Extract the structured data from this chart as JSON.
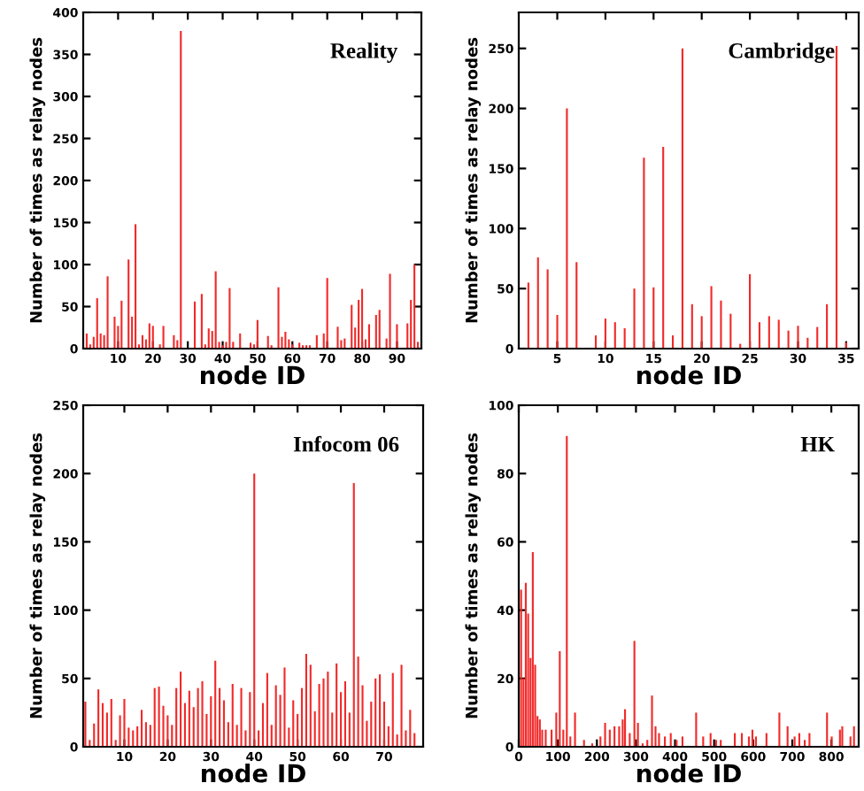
{
  "chart_data": [
    {
      "type": "bar",
      "title": "Reality",
      "xlabel": "node ID",
      "ylabel": "Number of times as relay nodes",
      "xlim": [
        0,
        97
      ],
      "xticks": [
        10,
        20,
        30,
        40,
        50,
        60,
        70,
        80,
        90
      ],
      "ylim": [
        0,
        400
      ],
      "yticks": [
        0,
        50,
        100,
        150,
        200,
        250,
        300,
        350,
        400
      ],
      "series": [
        {
          "color": "#f22a2a",
          "x": [
            1,
            2,
            3,
            4,
            5,
            6,
            7,
            9,
            10,
            11,
            13,
            14,
            15,
            16,
            17,
            18,
            19,
            20,
            22,
            23,
            26,
            27,
            28,
            32,
            34,
            35,
            36,
            37,
            38,
            39,
            40,
            41,
            42,
            43,
            45,
            48,
            49,
            50,
            53,
            54,
            56,
            57,
            58,
            59,
            60,
            62,
            63,
            64,
            65,
            67,
            69,
            70,
            73,
            74,
            75,
            77,
            78,
            79,
            80,
            81,
            82,
            84,
            85,
            87,
            88,
            90,
            93,
            94,
            95,
            96
          ],
          "values": [
            18,
            5,
            14,
            60,
            18,
            16,
            86,
            38,
            27,
            57,
            106,
            38,
            148,
            5,
            16,
            11,
            30,
            27,
            5,
            27,
            16,
            10,
            378,
            56,
            65,
            5,
            24,
            21,
            92,
            8,
            4,
            8,
            72,
            8,
            18,
            7,
            5,
            34,
            15,
            4,
            73,
            14,
            20,
            11,
            5,
            7,
            4,
            4,
            4,
            16,
            18,
            84,
            26,
            10,
            12,
            52,
            25,
            58,
            71,
            11,
            29,
            40,
            46,
            12,
            89,
            29,
            30,
            58,
            100,
            8
          ]
        }
      ]
    },
    {
      "type": "bar",
      "title": "Cambridge",
      "xlabel": "node ID",
      "ylabel": "Number of times as relay nodes",
      "xlim": [
        1,
        36.3
      ],
      "xticks": [
        5,
        10,
        15,
        20,
        25,
        30,
        35
      ],
      "ylim": [
        0,
        280
      ],
      "yticks": [
        0,
        50,
        100,
        150,
        200,
        250
      ],
      "series": [
        {
          "color": "#f22a2a",
          "x": [
            2,
            3,
            4,
            5,
            6,
            7,
            9,
            10,
            11,
            12,
            13,
            14,
            15,
            16,
            17,
            18,
            19,
            20,
            21,
            22,
            23,
            24,
            25,
            26,
            27,
            28,
            29,
            30,
            31,
            32,
            33,
            34,
            35
          ],
          "values": [
            55,
            76,
            66,
            28,
            200,
            72,
            11,
            25,
            22,
            17,
            50,
            159,
            51,
            168,
            11,
            250,
            37,
            27,
            52,
            40,
            29,
            4,
            62,
            22,
            27,
            24,
            15,
            19,
            9,
            18,
            37,
            252,
            5
          ]
        }
      ]
    },
    {
      "type": "bar",
      "title": "Infocom 06",
      "xlabel": "node ID",
      "ylabel": "Number of times as relay nodes",
      "xlim": [
        0.5,
        79
      ],
      "xticks": [
        10,
        20,
        30,
        40,
        50,
        60,
        70
      ],
      "ylim": [
        0,
        250
      ],
      "yticks": [
        0,
        50,
        100,
        150,
        200,
        250
      ],
      "series": [
        {
          "color": "#f22a2a",
          "x": [
            1,
            2,
            3,
            4,
            5,
            6,
            7,
            8,
            9,
            10,
            11,
            12,
            13,
            14,
            15,
            16,
            17,
            18,
            19,
            20,
            21,
            22,
            23,
            24,
            25,
            26,
            27,
            28,
            29,
            30,
            31,
            32,
            33,
            34,
            35,
            36,
            37,
            38,
            39,
            40,
            41,
            42,
            43,
            44,
            45,
            46,
            47,
            48,
            49,
            50,
            51,
            52,
            53,
            54,
            55,
            56,
            57,
            58,
            59,
            60,
            61,
            62,
            63,
            64,
            65,
            66,
            67,
            68,
            69,
            70,
            71,
            72,
            73,
            74,
            75,
            76,
            77
          ],
          "values": [
            33,
            5,
            17,
            42,
            32,
            25,
            35,
            5,
            23,
            35,
            14,
            12,
            15,
            27,
            18,
            16,
            43,
            44,
            30,
            23,
            16,
            43,
            55,
            32,
            41,
            29,
            43,
            48,
            24,
            37,
            63,
            43,
            34,
            18,
            46,
            16,
            43,
            12,
            40,
            200,
            12,
            32,
            54,
            16,
            45,
            38,
            58,
            14,
            34,
            24,
            43,
            68,
            60,
            26,
            46,
            50,
            55,
            25,
            61,
            40,
            48,
            25,
            193,
            66,
            45,
            19,
            33,
            50,
            53,
            33,
            15,
            54,
            9,
            60,
            12,
            27,
            10
          ]
        }
      ]
    },
    {
      "type": "bar",
      "title": "HK",
      "xlabel": "node ID",
      "ylabel": "Number of times as relay nodes",
      "xlim": [
        0,
        870
      ],
      "xticks": [
        0,
        100,
        200,
        300,
        400,
        500,
        600,
        700,
        800
      ],
      "ylim": [
        0,
        100
      ],
      "yticks": [
        0,
        20,
        40,
        60,
        80,
        100
      ],
      "series": [
        {
          "color": "#f22a2a",
          "x": [
            6,
            12,
            18,
            24,
            30,
            36,
            42,
            48,
            54,
            60,
            69,
            84,
            96,
            105,
            114,
            123,
            132,
            144,
            167,
            188,
            209,
            221,
            233,
            245,
            257,
            266,
            272,
            284,
            296,
            305,
            317,
            329,
            341,
            350,
            359,
            374,
            389,
            404,
            419,
            454,
            472,
            491,
            505,
            517,
            553,
            571,
            589,
            598,
            607,
            634,
            667,
            688,
            706,
            718,
            732,
            744,
            789,
            801,
            822,
            828,
            849,
            858
          ],
          "values": [
            46,
            20,
            48,
            39,
            26,
            57,
            24,
            9,
            8,
            5,
            5,
            5,
            10,
            28,
            5,
            91,
            3,
            10,
            2,
            1,
            3,
            7,
            5,
            6,
            6,
            8,
            11,
            4,
            31,
            7,
            1,
            2,
            15,
            6,
            4,
            3,
            4,
            2,
            3,
            10,
            3,
            4,
            2,
            2,
            4,
            4,
            3,
            5,
            3,
            4,
            10,
            6,
            3,
            4,
            2,
            4,
            10,
            3,
            5,
            6,
            3,
            6
          ]
        }
      ]
    }
  ]
}
